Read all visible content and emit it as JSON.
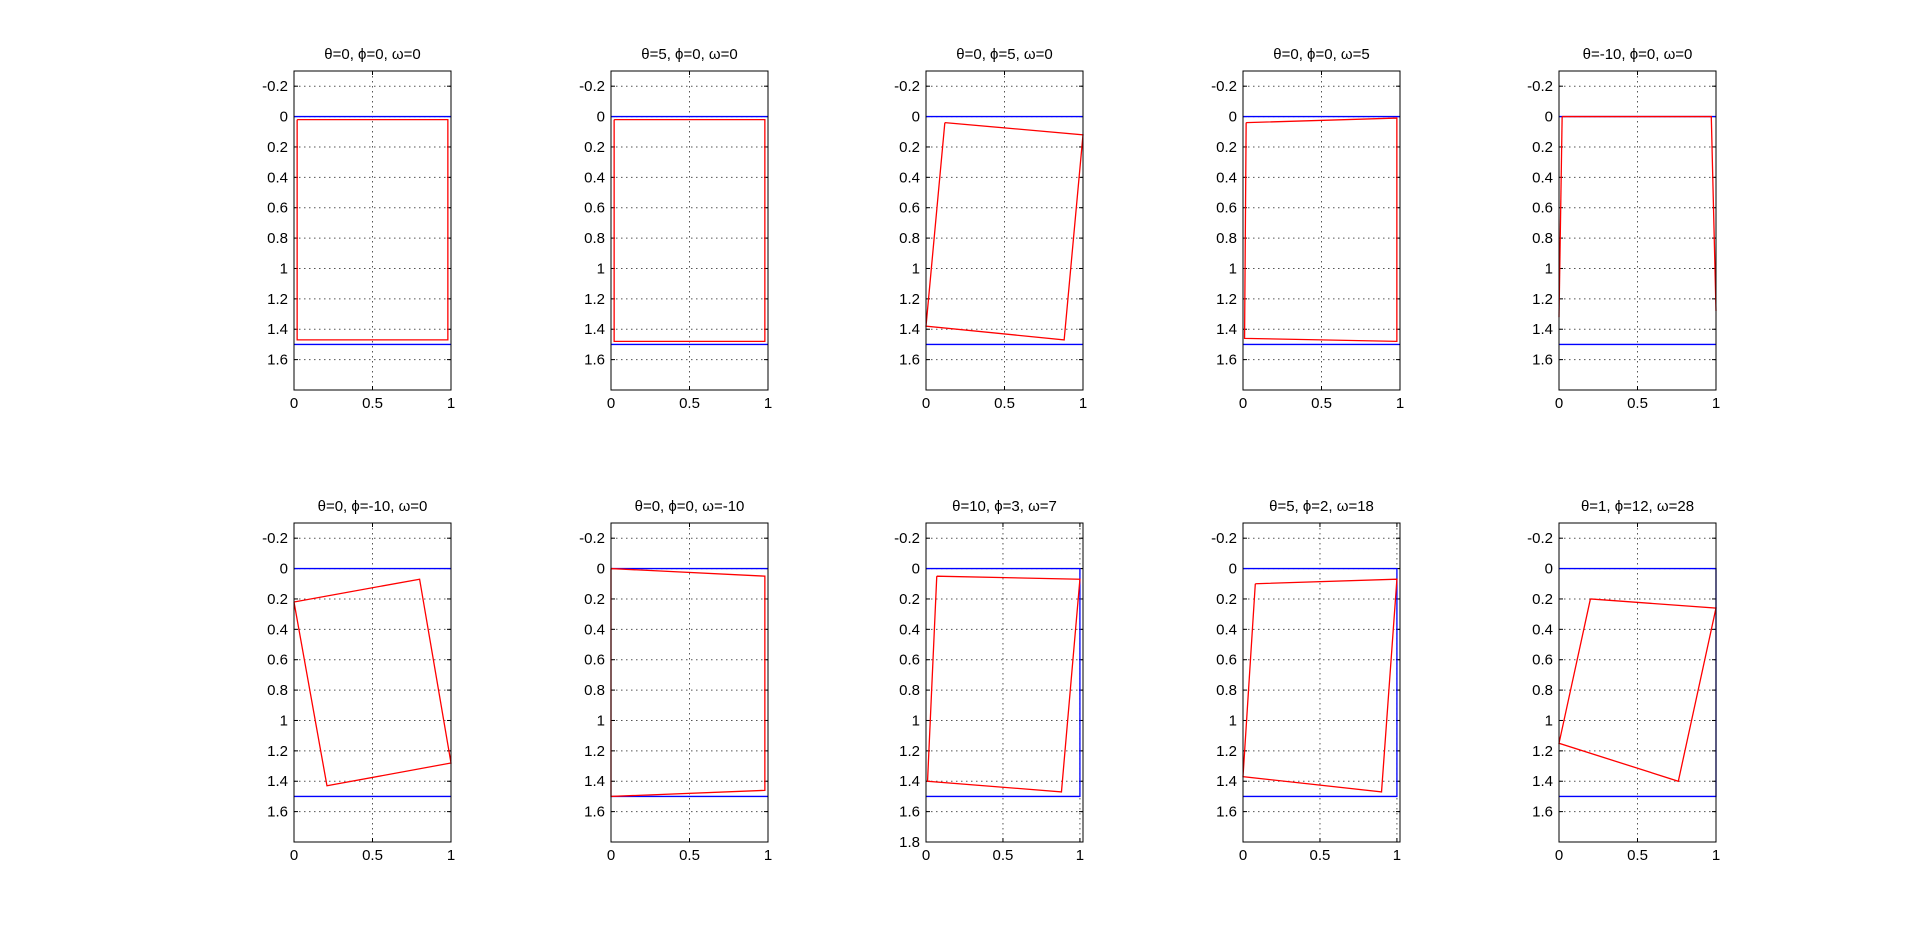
{
  "chart_data": [
    {
      "type": "line",
      "title": "θ=0, ϕ=0, ω=0",
      "xlim": [
        0,
        1
      ],
      "ylim": [
        -0.3,
        1.8
      ],
      "y_reversed": true,
      "grid": true,
      "xticks": [
        0,
        0.5,
        1
      ],
      "yticks": [
        -0.2,
        0,
        0.2,
        0.4,
        0.6,
        0.8,
        1,
        1.2,
        1.4,
        1.6
      ],
      "series": [
        {
          "color": "#0000ff",
          "segments": [
            [
              [
                0,
                0
              ],
              [
                1,
                0
              ]
            ],
            [
              [
                0,
                1.5
              ],
              [
                1,
                1.5
              ]
            ]
          ]
        },
        {
          "color": "#ff0000",
          "segments": [
            [
              [
                0.02,
                0.02
              ],
              [
                0.98,
                0.02
              ],
              [
                0.98,
                1.47
              ],
              [
                0.02,
                1.47
              ],
              [
                0.02,
                0.02
              ]
            ]
          ]
        }
      ]
    },
    {
      "type": "line",
      "title": "θ=5, ϕ=0, ω=0",
      "xlim": [
        0,
        1
      ],
      "ylim": [
        -0.3,
        1.8
      ],
      "y_reversed": true,
      "grid": true,
      "xticks": [
        0,
        0.5,
        1
      ],
      "yticks": [
        -0.2,
        0,
        0.2,
        0.4,
        0.6,
        0.8,
        1,
        1.2,
        1.4,
        1.6
      ],
      "series": [
        {
          "color": "#0000ff",
          "segments": [
            [
              [
                0,
                0
              ],
              [
                1,
                0
              ]
            ],
            [
              [
                0,
                1.5
              ],
              [
                1,
                1.5
              ]
            ]
          ]
        },
        {
          "color": "#ff0000",
          "segments": [
            [
              [
                0.02,
                0.02
              ],
              [
                0.98,
                0.02
              ],
              [
                0.98,
                1.48
              ],
              [
                0.02,
                1.48
              ],
              [
                0.02,
                0.02
              ]
            ]
          ]
        }
      ]
    },
    {
      "type": "line",
      "title": "θ=0, ϕ=5, ω=0",
      "xlim": [
        0,
        1
      ],
      "ylim": [
        -0.3,
        1.8
      ],
      "y_reversed": true,
      "grid": true,
      "xticks": [
        0,
        0.5,
        1
      ],
      "yticks": [
        -0.2,
        0,
        0.2,
        0.4,
        0.6,
        0.8,
        1,
        1.2,
        1.4,
        1.6
      ],
      "series": [
        {
          "color": "#0000ff",
          "segments": [
            [
              [
                0,
                0
              ],
              [
                1,
                0
              ]
            ],
            [
              [
                0,
                1.5
              ],
              [
                1,
                1.5
              ]
            ]
          ]
        },
        {
          "color": "#ff0000",
          "segments": [
            [
              [
                0.12,
                0.04
              ],
              [
                1.0,
                0.12
              ],
              [
                0.88,
                1.47
              ],
              [
                0.0,
                1.38
              ],
              [
                0.12,
                0.04
              ]
            ]
          ]
        }
      ]
    },
    {
      "type": "line",
      "title": "θ=0, ϕ=0, ω=5",
      "xlim": [
        0,
        1
      ],
      "ylim": [
        -0.3,
        1.8
      ],
      "y_reversed": true,
      "grid": true,
      "xticks": [
        0,
        0.5,
        1
      ],
      "yticks": [
        -0.2,
        0,
        0.2,
        0.4,
        0.6,
        0.8,
        1,
        1.2,
        1.4,
        1.6
      ],
      "series": [
        {
          "color": "#0000ff",
          "segments": [
            [
              [
                0,
                0
              ],
              [
                1,
                0
              ]
            ],
            [
              [
                0,
                1.5
              ],
              [
                1,
                1.5
              ]
            ]
          ]
        },
        {
          "color": "#ff0000",
          "segments": [
            [
              [
                0.02,
                0.04
              ],
              [
                0.98,
                0.01
              ],
              [
                0.98,
                1.48
              ],
              [
                0.01,
                1.46
              ],
              [
                0.02,
                0.04
              ]
            ]
          ]
        }
      ]
    },
    {
      "type": "line",
      "title": "θ=-10, ϕ=0, ω=0",
      "xlim": [
        0,
        1
      ],
      "ylim": [
        -0.3,
        1.8
      ],
      "y_reversed": true,
      "grid": true,
      "xticks": [
        0,
        0.5,
        1
      ],
      "yticks": [
        -0.2,
        0,
        0.2,
        0.4,
        0.6,
        0.8,
        1,
        1.2,
        1.4,
        1.6
      ],
      "series": [
        {
          "color": "#0000ff",
          "segments": [
            [
              [
                0,
                0
              ],
              [
                1,
                0
              ]
            ],
            [
              [
                0,
                1.5
              ],
              [
                1,
                1.5
              ]
            ]
          ]
        },
        {
          "color": "#ff0000",
          "segments": [
            [
              [
                0.02,
                0.0
              ],
              [
                0.97,
                0.0
              ],
              [
                1.0,
                1.28
              ]
            ],
            [
              [
                0.0,
                1.32
              ],
              [
                0.02,
                0.0
              ]
            ]
          ]
        }
      ]
    },
    {
      "type": "line",
      "title": "θ=0, ϕ=-10, ω=0",
      "xlim": [
        0,
        1
      ],
      "ylim": [
        -0.3,
        1.8
      ],
      "y_reversed": true,
      "grid": true,
      "xticks": [
        0,
        0.5,
        1
      ],
      "yticks": [
        -0.2,
        0,
        0.2,
        0.4,
        0.6,
        0.8,
        1,
        1.2,
        1.4,
        1.6
      ],
      "series": [
        {
          "color": "#0000ff",
          "segments": [
            [
              [
                0,
                0
              ],
              [
                1,
                0
              ]
            ],
            [
              [
                0,
                1.5
              ],
              [
                1,
                1.5
              ]
            ]
          ]
        },
        {
          "color": "#ff0000",
          "segments": [
            [
              [
                0.0,
                0.22
              ],
              [
                0.8,
                0.07
              ],
              [
                1.0,
                1.28
              ],
              [
                0.21,
                1.43
              ],
              [
                0.0,
                0.22
              ]
            ]
          ]
        }
      ]
    },
    {
      "type": "line",
      "title": "θ=0, ϕ=0, ω=-10",
      "xlim": [
        0,
        1
      ],
      "ylim": [
        -0.3,
        1.8
      ],
      "y_reversed": true,
      "grid": true,
      "xticks": [
        0,
        0.5,
        1
      ],
      "yticks": [
        -0.2,
        0,
        0.2,
        0.4,
        0.6,
        0.8,
        1,
        1.2,
        1.4,
        1.6
      ],
      "series": [
        {
          "color": "#0000ff",
          "segments": [
            [
              [
                0,
                0
              ],
              [
                1,
                0
              ]
            ],
            [
              [
                0,
                1.5
              ],
              [
                1,
                1.5
              ]
            ]
          ]
        },
        {
          "color": "#ff0000",
          "segments": [
            [
              [
                0.0,
                0.0
              ],
              [
                0.98,
                0.05
              ],
              [
                0.98,
                1.46
              ],
              [
                0.0,
                1.5
              ],
              [
                0.0,
                0.0
              ]
            ]
          ]
        }
      ]
    },
    {
      "type": "line",
      "title": "θ=10, ϕ=3, ω=7",
      "xlim": [
        0,
        1.02
      ],
      "ylim": [
        -0.3,
        1.8
      ],
      "y_reversed": true,
      "grid": true,
      "xticks": [
        0,
        0.5,
        1
      ],
      "yticks": [
        -0.2,
        0,
        0.2,
        0.4,
        0.6,
        0.8,
        1,
        1.2,
        1.4,
        1.6,
        1.8
      ],
      "series": [
        {
          "color": "#0000ff",
          "segments": [
            [
              [
                0,
                0
              ],
              [
                1.0,
                0
              ],
              [
                1.0,
                1.5
              ],
              [
                0,
                1.5
              ]
            ]
          ]
        },
        {
          "color": "#ff0000",
          "segments": [
            [
              [
                0.07,
                0.05
              ],
              [
                1.0,
                0.07
              ],
              [
                0.88,
                1.47
              ],
              [
                0.01,
                1.4
              ],
              [
                0.07,
                0.05
              ]
            ]
          ]
        }
      ]
    },
    {
      "type": "line",
      "title": "θ=5, ϕ=2, ω=18",
      "xlim": [
        0,
        1.02
      ],
      "ylim": [
        -0.3,
        1.8
      ],
      "y_reversed": true,
      "grid": true,
      "xticks": [
        0,
        0.5,
        1
      ],
      "yticks": [
        -0.2,
        0,
        0.2,
        0.4,
        0.6,
        0.8,
        1,
        1.2,
        1.4,
        1.6
      ],
      "series": [
        {
          "color": "#0000ff",
          "segments": [
            [
              [
                0,
                0
              ],
              [
                1.0,
                0
              ],
              [
                1.0,
                1.5
              ],
              [
                0,
                1.5
              ]
            ]
          ]
        },
        {
          "color": "#ff0000",
          "segments": [
            [
              [
                0.08,
                0.1
              ],
              [
                1.0,
                0.07
              ],
              [
                0.9,
                1.47
              ],
              [
                0.0,
                1.37
              ],
              [
                0.08,
                0.1
              ]
            ]
          ]
        }
      ]
    },
    {
      "type": "line",
      "title": "θ=1, ϕ=12, ω=28",
      "xlim": [
        0,
        1
      ],
      "ylim": [
        -0.3,
        1.8
      ],
      "y_reversed": true,
      "grid": true,
      "xticks": [
        0,
        0.5,
        1
      ],
      "yticks": [
        -0.2,
        0,
        0.2,
        0.4,
        0.6,
        0.8,
        1,
        1.2,
        1.4,
        1.6
      ],
      "series": [
        {
          "color": "#0000ff",
          "segments": [
            [
              [
                0,
                0
              ],
              [
                1.0,
                0
              ],
              [
                1.0,
                1.5
              ],
              [
                0,
                1.5
              ]
            ]
          ]
        },
        {
          "color": "#ff0000",
          "segments": [
            [
              [
                0.2,
                0.2
              ],
              [
                1.0,
                0.26
              ],
              [
                0.76,
                1.4
              ],
              [
                0.0,
                1.15
              ],
              [
                0.2,
                0.2
              ]
            ]
          ]
        }
      ]
    }
  ]
}
